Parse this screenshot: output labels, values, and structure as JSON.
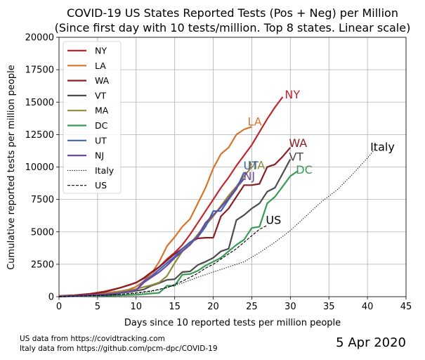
{
  "chart_data": {
    "type": "line",
    "title_line1": "COVID-19 US States Reported Tests (Pos + Neg) per Million",
    "title_line2": "(Since first day with 10 tests/million. Top 8 states. Linear scale)",
    "xlabel": "Days since 10 reported tests per million people",
    "ylabel": "Cumulative reported tests per million people",
    "xlim": [
      0,
      45
    ],
    "ylim": [
      0,
      20000
    ],
    "x_ticks": [
      0,
      5,
      10,
      15,
      20,
      25,
      30,
      35,
      40,
      45
    ],
    "y_ticks": [
      0,
      2500,
      5000,
      7500,
      10000,
      12500,
      15000,
      17500,
      20000
    ],
    "grid": true,
    "legend_position": "top-left",
    "series": [
      {
        "name": "NY",
        "color": "#c0272d",
        "style": "solid",
        "points": [
          [
            0,
            40
          ],
          [
            1,
            70
          ],
          [
            2,
            110
          ],
          [
            3,
            170
          ],
          [
            4,
            230
          ],
          [
            5,
            320
          ],
          [
            6,
            420
          ],
          [
            7,
            560
          ],
          [
            8,
            700
          ],
          [
            9,
            880
          ],
          [
            10,
            1100
          ],
          [
            11,
            1400
          ],
          [
            12,
            1800
          ],
          [
            13,
            2300
          ],
          [
            14,
            2900
          ],
          [
            15,
            3400
          ],
          [
            16,
            4000
          ],
          [
            17,
            4800
          ],
          [
            18,
            5700
          ],
          [
            19,
            6600
          ],
          [
            20,
            7500
          ],
          [
            21,
            8400
          ],
          [
            22,
            9200
          ],
          [
            23,
            10100
          ],
          [
            24,
            10900
          ],
          [
            25,
            11700
          ],
          [
            26,
            12700
          ],
          [
            27,
            13700
          ],
          [
            28,
            14600
          ],
          [
            29,
            15400
          ]
        ],
        "end_label": "NY"
      },
      {
        "name": "LA",
        "color": "#d7742b",
        "style": "solid",
        "points": [
          [
            0,
            40
          ],
          [
            2,
            80
          ],
          [
            4,
            140
          ],
          [
            5,
            200
          ],
          [
            6,
            270
          ],
          [
            7,
            350
          ],
          [
            8,
            430
          ],
          [
            9,
            540
          ],
          [
            10,
            780
          ],
          [
            11,
            1200
          ],
          [
            12,
            1800
          ],
          [
            13,
            2700
          ],
          [
            14,
            3900
          ],
          [
            15,
            4600
          ],
          [
            16,
            5400
          ],
          [
            17,
            6000
          ],
          [
            18,
            7200
          ],
          [
            19,
            8400
          ],
          [
            20,
            9900
          ],
          [
            21,
            11000
          ],
          [
            22,
            11500
          ],
          [
            23,
            12500
          ],
          [
            24,
            12900
          ],
          [
            25,
            13100
          ]
        ],
        "end_label": "LA"
      },
      {
        "name": "WA",
        "color": "#8b1e23",
        "style": "solid",
        "points": [
          [
            0,
            60
          ],
          [
            1,
            90
          ],
          [
            2,
            120
          ],
          [
            3,
            160
          ],
          [
            4,
            200
          ],
          [
            5,
            280
          ],
          [
            6,
            380
          ],
          [
            7,
            530
          ],
          [
            8,
            700
          ],
          [
            9,
            900
          ],
          [
            10,
            1080
          ],
          [
            11,
            1450
          ],
          [
            12,
            1900
          ],
          [
            13,
            2300
          ],
          [
            14,
            2800
          ],
          [
            15,
            3300
          ],
          [
            16,
            3700
          ],
          [
            17,
            4200
          ],
          [
            18,
            4500
          ],
          [
            19,
            4550
          ],
          [
            20,
            4550
          ],
          [
            21,
            6200
          ],
          [
            22,
            6800
          ],
          [
            23,
            7700
          ],
          [
            24,
            8600
          ],
          [
            25,
            8600
          ],
          [
            26,
            8700
          ],
          [
            27,
            10000
          ],
          [
            28,
            10200
          ],
          [
            29,
            10800
          ],
          [
            30,
            11500
          ]
        ],
        "end_label": "WA"
      },
      {
        "name": "VT",
        "color": "#4d4d4d",
        "style": "solid",
        "points": [
          [
            0,
            20
          ],
          [
            2,
            50
          ],
          [
            4,
            90
          ],
          [
            5,
            120
          ],
          [
            6,
            170
          ],
          [
            7,
            230
          ],
          [
            8,
            290
          ],
          [
            9,
            360
          ],
          [
            10,
            450
          ],
          [
            11,
            560
          ],
          [
            12,
            850
          ],
          [
            13,
            1050
          ],
          [
            14,
            1300
          ],
          [
            15,
            1350
          ],
          [
            16,
            1900
          ],
          [
            17,
            1950
          ],
          [
            18,
            2450
          ],
          [
            19,
            2700
          ],
          [
            20,
            3000
          ],
          [
            21,
            3500
          ],
          [
            22,
            3700
          ],
          [
            23,
            5900
          ],
          [
            24,
            6300
          ],
          [
            25,
            6800
          ],
          [
            26,
            7200
          ],
          [
            27,
            8100
          ],
          [
            28,
            8400
          ],
          [
            29,
            9500
          ],
          [
            30,
            10600
          ]
        ],
        "end_label": "VT"
      },
      {
        "name": "MA",
        "color": "#918a3c",
        "style": "solid",
        "points": [
          [
            0,
            30
          ],
          [
            2,
            60
          ],
          [
            4,
            100
          ],
          [
            5,
            150
          ],
          [
            6,
            220
          ],
          [
            7,
            300
          ],
          [
            8,
            380
          ],
          [
            9,
            480
          ],
          [
            10,
            600
          ],
          [
            11,
            750
          ],
          [
            12,
            900
          ],
          [
            13,
            1100
          ],
          [
            14,
            1600
          ],
          [
            15,
            2600
          ],
          [
            16,
            3500
          ],
          [
            17,
            4100
          ],
          [
            18,
            4800
          ],
          [
            19,
            5500
          ],
          [
            20,
            6200
          ],
          [
            21,
            7000
          ],
          [
            22,
            7800
          ],
          [
            23,
            8500
          ],
          [
            24,
            9300
          ],
          [
            25,
            10000
          ]
        ],
        "end_label": "MA"
      },
      {
        "name": "DC",
        "color": "#3a9a56",
        "style": "solid",
        "points": [
          [
            0,
            10
          ],
          [
            2,
            30
          ],
          [
            4,
            50
          ],
          [
            6,
            80
          ],
          [
            8,
            110
          ],
          [
            10,
            150
          ],
          [
            11,
            200
          ],
          [
            12,
            250
          ],
          [
            13,
            300
          ],
          [
            14,
            850
          ],
          [
            15,
            850
          ],
          [
            16,
            1700
          ],
          [
            17,
            1750
          ],
          [
            18,
            2000
          ],
          [
            19,
            2400
          ],
          [
            20,
            2700
          ],
          [
            21,
            3000
          ],
          [
            22,
            3500
          ],
          [
            23,
            4000
          ],
          [
            24,
            4400
          ],
          [
            25,
            5300
          ],
          [
            26,
            5400
          ],
          [
            27,
            7200
          ],
          [
            28,
            7700
          ],
          [
            29,
            8500
          ],
          [
            30,
            9300
          ],
          [
            31,
            9700
          ]
        ],
        "end_label": "DC"
      },
      {
        "name": "UT",
        "color": "#3f64ae",
        "style": "solid",
        "points": [
          [
            0,
            10
          ],
          [
            2,
            40
          ],
          [
            4,
            80
          ],
          [
            6,
            130
          ],
          [
            7,
            180
          ],
          [
            8,
            300
          ],
          [
            9,
            400
          ],
          [
            10,
            500
          ],
          [
            11,
            1200
          ],
          [
            12,
            1600
          ],
          [
            13,
            2100
          ],
          [
            14,
            2600
          ],
          [
            15,
            3100
          ],
          [
            16,
            3700
          ],
          [
            17,
            4200
          ],
          [
            18,
            4600
          ],
          [
            19,
            5400
          ],
          [
            20,
            6600
          ],
          [
            21,
            6600
          ],
          [
            22,
            7500
          ],
          [
            23,
            8300
          ],
          [
            24,
            9600
          ]
        ],
        "end_label": "UT"
      },
      {
        "name": "NJ",
        "color": "#6d4a9b",
        "style": "solid",
        "points": [
          [
            0,
            20
          ],
          [
            2,
            60
          ],
          [
            4,
            110
          ],
          [
            6,
            180
          ],
          [
            8,
            300
          ],
          [
            10,
            500
          ],
          [
            11,
            1100
          ],
          [
            12,
            1500
          ],
          [
            13,
            1900
          ],
          [
            14,
            2400
          ],
          [
            15,
            3000
          ],
          [
            16,
            3500
          ],
          [
            17,
            4000
          ],
          [
            18,
            4700
          ],
          [
            19,
            5700
          ],
          [
            20,
            6300
          ],
          [
            21,
            6900
          ],
          [
            22,
            7600
          ],
          [
            23,
            8400
          ],
          [
            24,
            9100
          ]
        ],
        "end_label": "NJ"
      },
      {
        "name": "Italy",
        "color": "#000000",
        "style": "dotted",
        "points": [
          [
            0,
            20
          ],
          [
            2,
            50
          ],
          [
            4,
            80
          ],
          [
            6,
            130
          ],
          [
            8,
            180
          ],
          [
            10,
            250
          ],
          [
            12,
            400
          ],
          [
            14,
            700
          ],
          [
            16,
            1050
          ],
          [
            18,
            1500
          ],
          [
            20,
            1900
          ],
          [
            22,
            2300
          ],
          [
            24,
            2700
          ],
          [
            26,
            3400
          ],
          [
            28,
            4200
          ],
          [
            30,
            5100
          ],
          [
            32,
            6200
          ],
          [
            34,
            7300
          ],
          [
            36,
            8200
          ],
          [
            38,
            9400
          ],
          [
            40,
            10700
          ],
          [
            41,
            11400
          ]
        ],
        "end_label": "Italy"
      },
      {
        "name": "US",
        "color": "#000000",
        "style": "dashed",
        "points": [
          [
            0,
            10
          ],
          [
            2,
            40
          ],
          [
            4,
            70
          ],
          [
            6,
            110
          ],
          [
            8,
            180
          ],
          [
            10,
            300
          ],
          [
            12,
            450
          ],
          [
            14,
            700
          ],
          [
            16,
            1200
          ],
          [
            18,
            1800
          ],
          [
            19,
            2200
          ],
          [
            20,
            2500
          ],
          [
            21,
            2900
          ],
          [
            22,
            3300
          ],
          [
            23,
            3700
          ],
          [
            24,
            4200
          ],
          [
            25,
            4700
          ],
          [
            26,
            5200
          ],
          [
            27,
            5500
          ]
        ],
        "end_label": "US"
      }
    ]
  },
  "footer": {
    "source_us": "US data from https://covidtracking.com",
    "source_italy": "Italy data from https://github.com/pcm-dpc/COVID-19",
    "date": "5 Apr 2020"
  }
}
